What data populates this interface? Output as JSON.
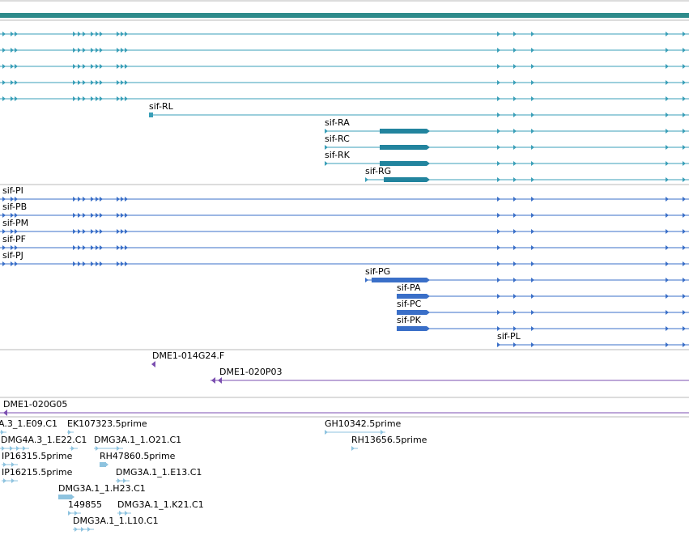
{
  "colors": {
    "teal": "#3a9fb8",
    "teal_dark": "#22849e",
    "blue": "#3a6fc8",
    "purple": "#7b4fb0",
    "light_blue": "#8ec3df",
    "scale_bar": "#2e8b8b",
    "separator": "#b9b9b9"
  },
  "tracks": {
    "teal_transcripts": {
      "labels": [
        "sif-RL",
        "sif-RA",
        "sif-RC",
        "sif-RK",
        "sif-RG"
      ]
    },
    "blue_transcripts": {
      "labels": [
        "sif-PI",
        "sif-PB",
        "sif-PM",
        "sif-PF",
        "sif-PJ",
        "sif-PG",
        "sif-PA",
        "sif-PC",
        "sif-PK",
        "sif-PL"
      ]
    },
    "purple_clones": {
      "labels": [
        "DME1-014G24.F",
        "DME1-020P03"
      ]
    },
    "purple_clone_single": {
      "label": "DME1-020G05"
    },
    "ests": {
      "labels": [
        "A.3_1.E09.C1",
        "EK107323.5prime",
        "GH10342.5prime",
        "DMG4A.3_1.E22.C1",
        "DMG3A.1_1.O21.C1",
        "RH13656.5prime",
        "IP16315.5prime",
        "RH47860.5prime",
        "IP16215.5prime",
        "DMG3A.1_1.E13.C1",
        "DMG3A.1_1.H23.C1",
        "149855",
        "DMG3A.1_1.K21.C1",
        "DMG3A.1_1.L10.C1"
      ]
    }
  }
}
